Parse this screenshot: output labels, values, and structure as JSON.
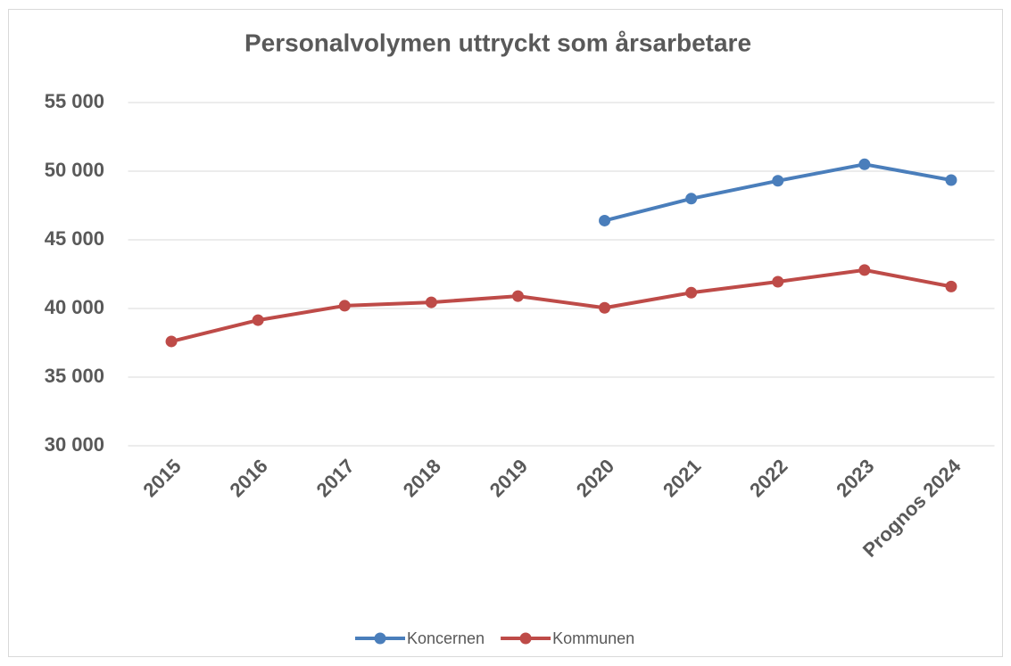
{
  "chart_data": {
    "type": "line",
    "title": "Personalvolymen uttryckt som årsarbetare",
    "categories": [
      "2015",
      "2016",
      "2017",
      "2018",
      "2019",
      "2020",
      "2021",
      "2022",
      "2023",
      "Prognos 2024"
    ],
    "series": [
      {
        "name": "Koncernen",
        "color": "#4a7ebb",
        "values": [
          null,
          null,
          null,
          null,
          null,
          46400,
          48000,
          49300,
          50500,
          49350
        ]
      },
      {
        "name": "Kommunen",
        "color": "#be4b48",
        "values": [
          37600,
          39150,
          40200,
          40450,
          40900,
          40050,
          41150,
          41950,
          42800,
          41600
        ]
      }
    ],
    "ylim": [
      30000,
      55000
    ],
    "yticks": [
      {
        "value": 30000,
        "label": "30 000"
      },
      {
        "value": 35000,
        "label": "35 000"
      },
      {
        "value": 40000,
        "label": "40 000"
      },
      {
        "value": 45000,
        "label": "45 000"
      },
      {
        "value": 50000,
        "label": "50 000"
      },
      {
        "value": 55000,
        "label": "55 000"
      }
    ],
    "grid": true,
    "legend": "bottom"
  }
}
